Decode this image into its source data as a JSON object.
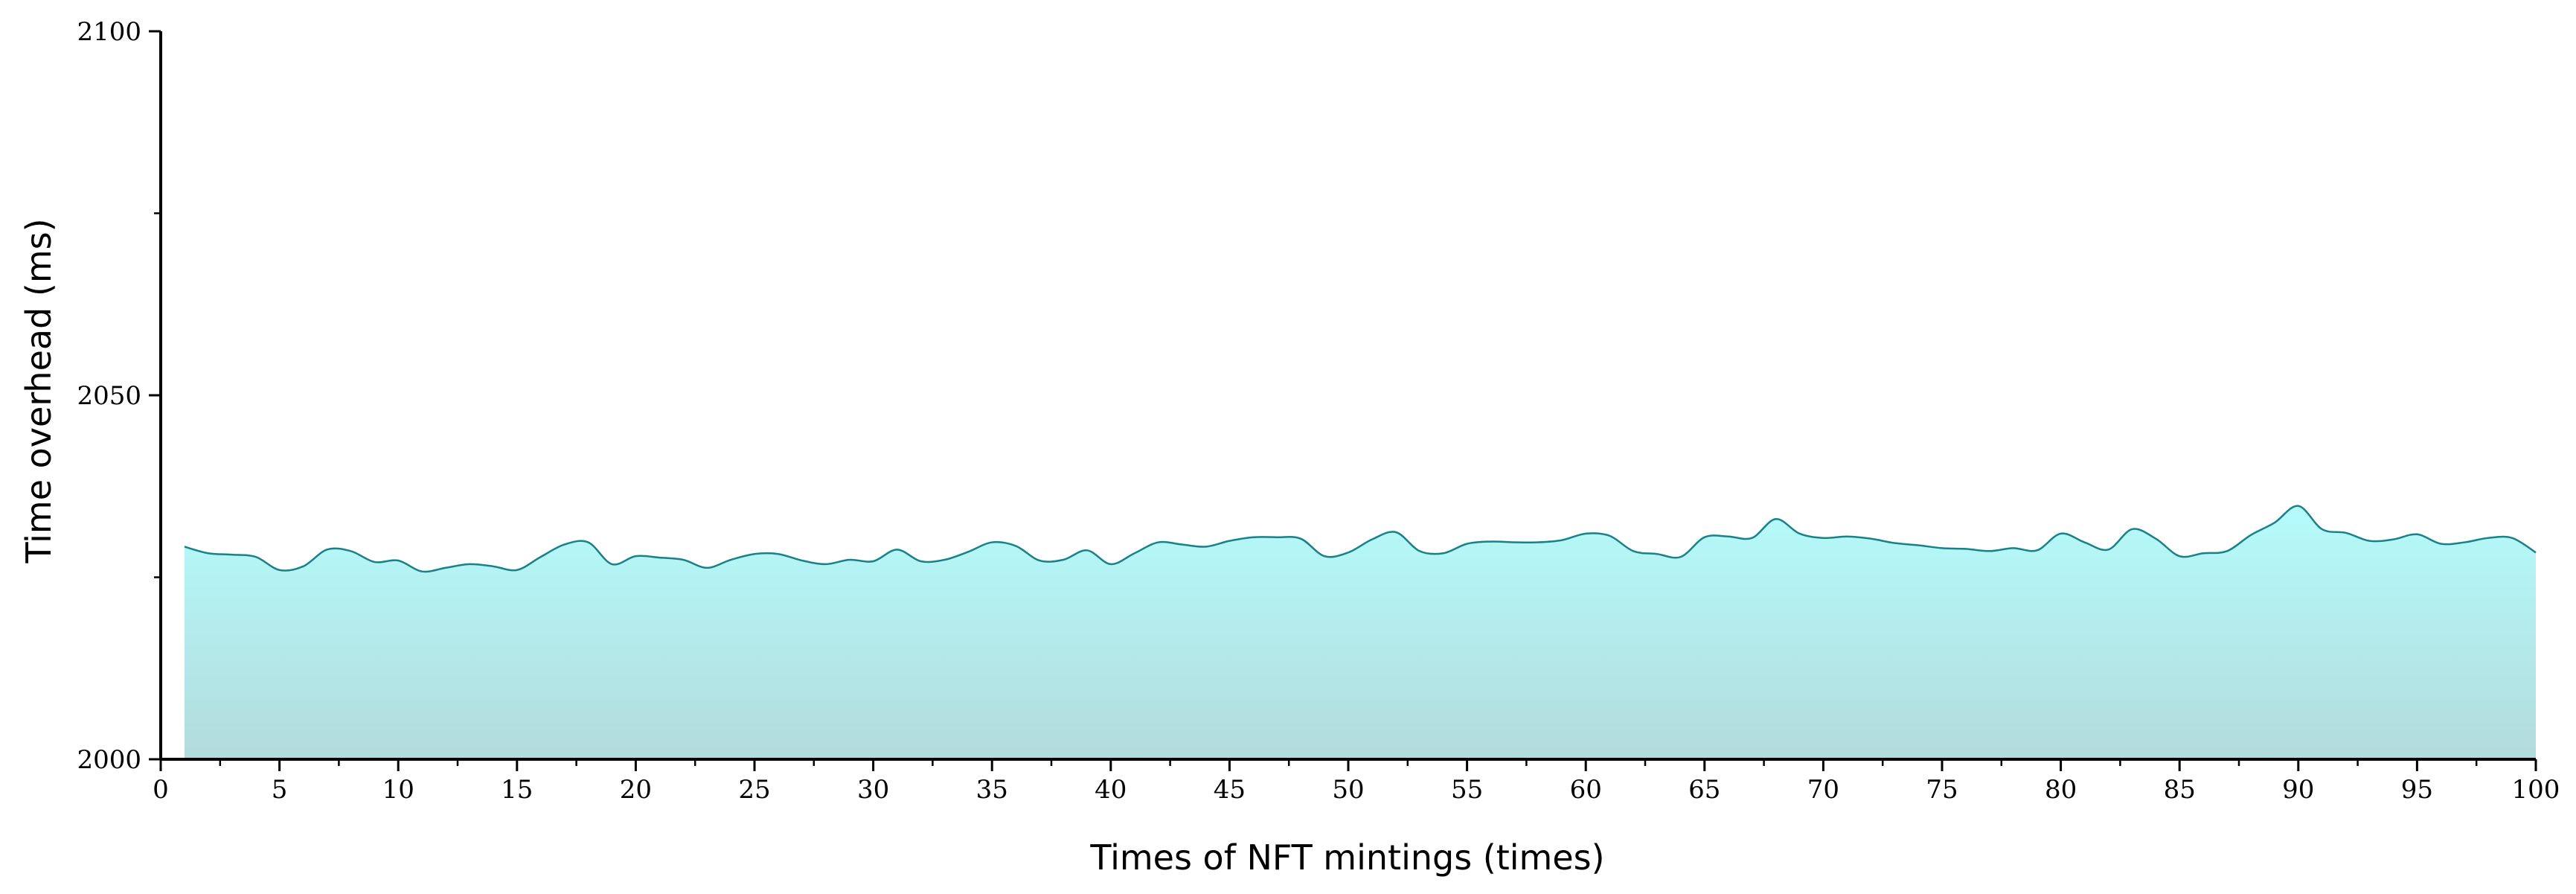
{
  "chart_data": {
    "type": "area",
    "xlabel": "Times of NFT mintings (times)",
    "ylabel": "Time overhead  (ms)",
    "xlim": [
      0,
      100
    ],
    "ylim": [
      2000,
      2100
    ],
    "x_ticks": [
      0,
      5,
      10,
      15,
      20,
      25,
      30,
      35,
      40,
      45,
      50,
      55,
      60,
      65,
      70,
      75,
      80,
      85,
      90,
      95,
      100
    ],
    "y_ticks": [
      2000,
      2050,
      2100
    ],
    "grid": false,
    "legend": "none",
    "colors": {
      "line": "#1f7f86",
      "fill_top": "#b4fbfb",
      "fill_bottom": "#b3dbdc",
      "axis": "#000000"
    },
    "series": [
      {
        "x": [
          1,
          2,
          3,
          4,
          5,
          6,
          7,
          8,
          9,
          10,
          11,
          12,
          13,
          14,
          15,
          16,
          17,
          18,
          19,
          20,
          21,
          22,
          23,
          24,
          25,
          26,
          27,
          28,
          29,
          30,
          31,
          32,
          33,
          34,
          35,
          36,
          37,
          38,
          39,
          40,
          41,
          42,
          43,
          44,
          45,
          46,
          47,
          48,
          49,
          50,
          51,
          52,
          53,
          54,
          55,
          56,
          57,
          58,
          59,
          60,
          61,
          62,
          63,
          64,
          65,
          66,
          67,
          68,
          69,
          70,
          71,
          72,
          73,
          74,
          75,
          76,
          77,
          78,
          79,
          80,
          81,
          82,
          83,
          84,
          85,
          86,
          87,
          88,
          89,
          90,
          91,
          92,
          93,
          94,
          95,
          96,
          97,
          98,
          99,
          100
        ],
        "values": [
          2029.2,
          2028.3,
          2028.1,
          2027.8,
          2026.0,
          2026.5,
          2028.8,
          2028.6,
          2027.1,
          2027.3,
          2025.8,
          2026.3,
          2026.8,
          2026.5,
          2026.0,
          2027.8,
          2029.5,
          2029.8,
          2026.8,
          2027.9,
          2027.7,
          2027.4,
          2026.3,
          2027.4,
          2028.2,
          2028.2,
          2027.3,
          2026.8,
          2027.4,
          2027.2,
          2028.8,
          2027.2,
          2027.4,
          2028.5,
          2029.8,
          2029.3,
          2027.3,
          2027.4,
          2028.7,
          2026.8,
          2028.3,
          2029.8,
          2029.5,
          2029.2,
          2030.0,
          2030.5,
          2030.5,
          2030.3,
          2027.9,
          2028.4,
          2030.2,
          2031.2,
          2028.6,
          2028.3,
          2029.6,
          2029.9,
          2029.8,
          2029.8,
          2030.1,
          2031.0,
          2030.7,
          2028.6,
          2028.2,
          2027.8,
          2030.5,
          2030.6,
          2030.4,
          2033.0,
          2031.0,
          2030.4,
          2030.6,
          2030.3,
          2029.7,
          2029.4,
          2029.0,
          2028.9,
          2028.6,
          2029.0,
          2028.7,
          2031.0,
          2029.8,
          2028.8,
          2031.6,
          2030.3,
          2027.9,
          2028.3,
          2028.6,
          2030.8,
          2032.5,
          2034.8,
          2031.6,
          2031.1,
          2030.0,
          2030.2,
          2030.9,
          2029.6,
          2029.8,
          2030.4,
          2030.4,
          2028.4
        ]
      }
    ]
  }
}
